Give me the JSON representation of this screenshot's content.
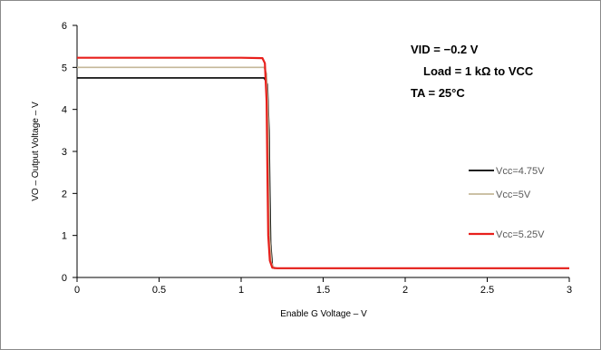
{
  "chart_data": {
    "type": "line",
    "title": "",
    "xlabel": "Enable G Voltage – V",
    "ylabel": "VO – Output Voltage – V",
    "xlim": [
      0,
      3
    ],
    "ylim": [
      0,
      6
    ],
    "x_ticks": [
      0,
      0.5,
      1,
      1.5,
      2,
      2.5,
      3
    ],
    "x_tick_labels": [
      "0",
      "0.5",
      "1",
      "1.5",
      "2",
      "2.5",
      "3"
    ],
    "y_ticks": [
      0,
      1,
      2,
      3,
      4,
      5,
      6
    ],
    "y_tick_labels": [
      "0",
      "1",
      "2",
      "3",
      "4",
      "5",
      "6"
    ],
    "grid": false,
    "legend_position": "right",
    "annotations": [
      "VID = −0.2 V",
      "Load = 1 kΩ to VCC",
      "TA = 25°C"
    ],
    "series": [
      {
        "name": "Vcc=4.75V",
        "color": "#000000",
        "x": [
          0,
          1.0,
          1.14,
          1.16,
          1.17,
          1.175,
          1.18,
          1.19,
          1.2,
          1.22,
          1.3,
          2.0,
          3.0
        ],
        "y": [
          4.75,
          4.75,
          4.75,
          4.6,
          3.5,
          2.0,
          0.8,
          0.3,
          0.22,
          0.22,
          0.22,
          0.22,
          0.22
        ]
      },
      {
        "name": "Vcc=5V",
        "color": "#c4b89a",
        "x": [
          0,
          1.0,
          1.14,
          1.155,
          1.165,
          1.17,
          1.175,
          1.185,
          1.2,
          1.22,
          1.3,
          2.0,
          3.0
        ],
        "y": [
          5.0,
          5.0,
          5.0,
          4.85,
          3.8,
          2.2,
          0.9,
          0.35,
          0.22,
          0.22,
          0.22,
          0.22,
          0.22
        ]
      },
      {
        "name": "Vcc=5.25V",
        "color": "#e8201c",
        "x": [
          0,
          1.0,
          1.13,
          1.145,
          1.155,
          1.16,
          1.165,
          1.175,
          1.19,
          1.22,
          1.3,
          2.0,
          3.0
        ],
        "y": [
          5.23,
          5.23,
          5.22,
          5.1,
          4.2,
          2.5,
          1.0,
          0.4,
          0.23,
          0.22,
          0.22,
          0.22,
          0.22
        ]
      }
    ]
  }
}
